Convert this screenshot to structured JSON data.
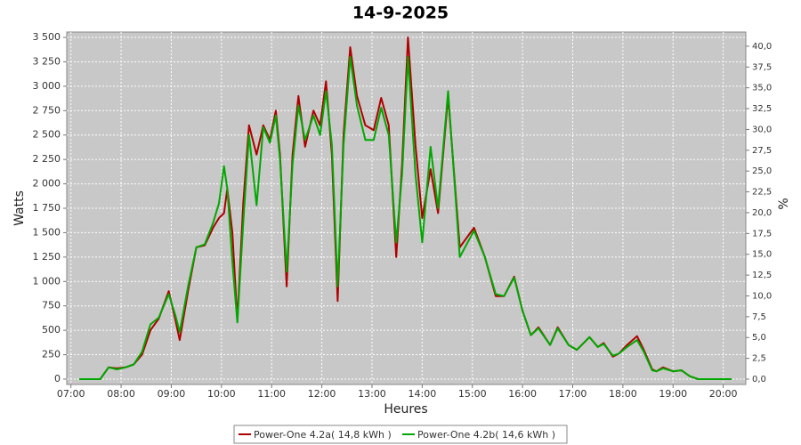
{
  "chart_data": {
    "type": "line",
    "title": "14-9-2025",
    "x_label": "Heures",
    "y_label": "Watts",
    "y2_label": "%",
    "x": [
      "07:10",
      "07:35",
      "07:45",
      "07:55",
      "08:05",
      "08:15",
      "08:25",
      "08:35",
      "08:45",
      "08:57",
      "09:05",
      "09:10",
      "09:20",
      "09:30",
      "09:40",
      "09:50",
      "09:57",
      "10:03",
      "10:07",
      "10:13",
      "10:19",
      "10:26",
      "10:33",
      "10:42",
      "10:50",
      "10:58",
      "11:05",
      "11:10",
      "11:18",
      "11:25",
      "11:32",
      "11:40",
      "11:50",
      "11:58",
      "12:05",
      "12:12",
      "12:19",
      "12:26",
      "12:34",
      "12:42",
      "12:52",
      "13:02",
      "13:11",
      "13:20",
      "13:29",
      "13:36",
      "13:43",
      "13:52",
      "14:00",
      "14:10",
      "14:19",
      "14:31",
      "14:45",
      "15:02",
      "15:15",
      "15:28",
      "15:38",
      "15:50",
      "16:00",
      "16:10",
      "16:19",
      "16:33",
      "16:42",
      "16:55",
      "17:05",
      "17:20",
      "17:30",
      "17:37",
      "17:48",
      "17:55",
      "18:05",
      "18:17",
      "18:25",
      "18:35",
      "18:40",
      "18:48",
      "19:00",
      "19:10",
      "19:20",
      "19:30",
      "20:10"
    ],
    "series": [
      {
        "name": "Power-One 4.2a( 14,8 kWh )",
        "color": "#b00000",
        "values": [
          0,
          0,
          120,
          110,
          120,
          150,
          250,
          500,
          620,
          900,
          600,
          400,
          900,
          1350,
          1370,
          1550,
          1650,
          1700,
          1950,
          1500,
          600,
          1800,
          2600,
          2300,
          2600,
          2450,
          2750,
          2300,
          950,
          2300,
          2900,
          2380,
          2750,
          2600,
          3050,
          2300,
          800,
          2500,
          3400,
          2900,
          2600,
          2550,
          2880,
          2600,
          1250,
          2200,
          3500,
          2400,
          1650,
          2150,
          1700,
          2900,
          1350,
          1550,
          1250,
          850,
          850,
          1050,
          700,
          450,
          530,
          350,
          530,
          350,
          300,
          430,
          330,
          370,
          230,
          260,
          350,
          440,
          300,
          100,
          80,
          120,
          80,
          90,
          30,
          0,
          0
        ]
      },
      {
        "name": "Power-One 4.2b( 14,6 kWh )",
        "color": "#00a800",
        "values": [
          0,
          0,
          120,
          100,
          120,
          150,
          280,
          560,
          630,
          870,
          650,
          480,
          950,
          1350,
          1380,
          1600,
          1800,
          2180,
          1950,
          1200,
          580,
          1600,
          2500,
          1780,
          2580,
          2420,
          2700,
          2250,
          1100,
          2200,
          2800,
          2450,
          2700,
          2500,
          2950,
          2400,
          950,
          2400,
          3300,
          2800,
          2450,
          2450,
          2780,
          2500,
          1400,
          2100,
          3300,
          2100,
          1400,
          2380,
          1750,
          2950,
          1250,
          1520,
          1250,
          870,
          850,
          1040,
          700,
          450,
          520,
          350,
          520,
          350,
          300,
          430,
          330,
          360,
          240,
          260,
          330,
          400,
          280,
          90,
          80,
          110,
          80,
          90,
          30,
          0,
          0
        ]
      }
    ],
    "xlim": [
      "06:55",
      "20:27"
    ],
    "xticks": [
      "07:00",
      "08:00",
      "09:00",
      "10:00",
      "11:00",
      "12:00",
      "13:00",
      "14:00",
      "15:00",
      "16:00",
      "17:00",
      "18:00",
      "19:00",
      "20:00"
    ],
    "ylim": [
      -55,
      3555
    ],
    "yticks": [
      0,
      250,
      500,
      750,
      {
        "value": 1000,
        "label": "1 000"
      },
      {
        "value": 1250,
        "label": "1 250"
      },
      {
        "value": 1500,
        "label": "1 500"
      },
      {
        "value": 1750,
        "label": "1 750"
      },
      {
        "value": 2000,
        "label": "2 000"
      },
      {
        "value": 2250,
        "label": "2 250"
      },
      {
        "value": 2500,
        "label": "2 500"
      },
      {
        "value": 2750,
        "label": "2 750"
      },
      {
        "value": 3000,
        "label": "3 000"
      },
      {
        "value": 3250,
        "label": "3 250"
      },
      {
        "value": 3500,
        "label": "3 500"
      }
    ],
    "y2lim": [
      -0.64,
      41.7
    ],
    "y2ticks": [
      {
        "value": 0,
        "label": "0,0"
      },
      {
        "value": 2.5,
        "label": "2,5"
      },
      {
        "value": 5,
        "label": "5,0"
      },
      {
        "value": 7.5,
        "label": "7,5"
      },
      {
        "value": 10,
        "label": "10,0"
      },
      {
        "value": 12.5,
        "label": "12,5"
      },
      {
        "value": 15,
        "label": "15,0"
      },
      {
        "value": 17.5,
        "label": "17,5"
      },
      {
        "value": 20,
        "label": "20,0"
      },
      {
        "value": 22.5,
        "label": "22,5"
      },
      {
        "value": 25,
        "label": "25,0"
      },
      {
        "value": 27.5,
        "label": "27,5"
      },
      {
        "value": 30,
        "label": "30,0"
      },
      {
        "value": 32.5,
        "label": "32,5"
      },
      {
        "value": 35,
        "label": "35,0"
      },
      {
        "value": 37.5,
        "label": "37,5"
      },
      {
        "value": 40,
        "label": "40,0"
      }
    ],
    "grid": true
  }
}
